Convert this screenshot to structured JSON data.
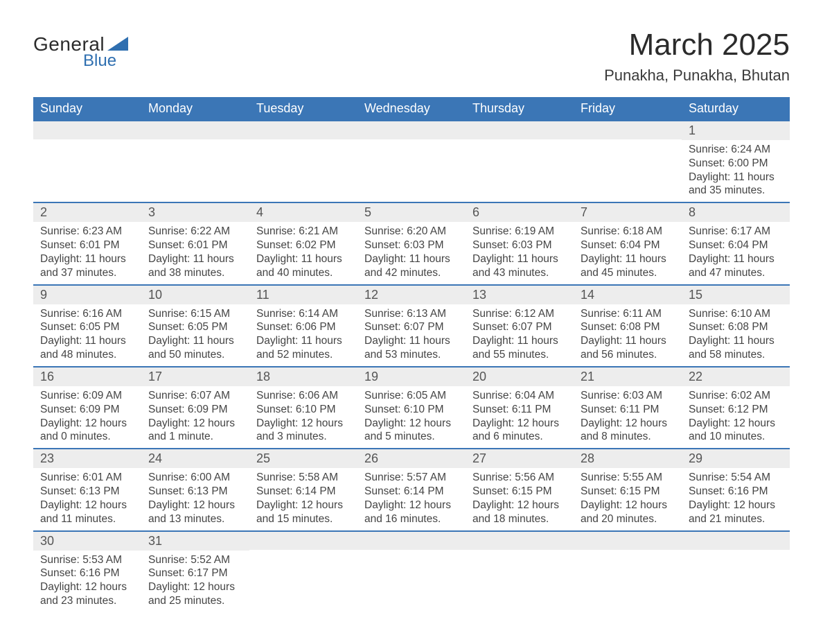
{
  "logo": {
    "text1": "General",
    "text2": "Blue",
    "tri_color": "#2f6fb0"
  },
  "title": "March 2025",
  "location": "Punakha, Punakha, Bhutan",
  "colors": {
    "header_bg": "#3b76b6",
    "header_fg": "#ffffff",
    "daynum_bg": "#ededed",
    "rule": "#3b76b6",
    "text": "#3a3a3a"
  },
  "weekdays": [
    "Sunday",
    "Monday",
    "Tuesday",
    "Wednesday",
    "Thursday",
    "Friday",
    "Saturday"
  ],
  "leading_blanks": 6,
  "days": [
    {
      "n": 1,
      "sr": "6:24 AM",
      "ss": "6:00 PM",
      "dl": "11 hours and 35 minutes."
    },
    {
      "n": 2,
      "sr": "6:23 AM",
      "ss": "6:01 PM",
      "dl": "11 hours and 37 minutes."
    },
    {
      "n": 3,
      "sr": "6:22 AM",
      "ss": "6:01 PM",
      "dl": "11 hours and 38 minutes."
    },
    {
      "n": 4,
      "sr": "6:21 AM",
      "ss": "6:02 PM",
      "dl": "11 hours and 40 minutes."
    },
    {
      "n": 5,
      "sr": "6:20 AM",
      "ss": "6:03 PM",
      "dl": "11 hours and 42 minutes."
    },
    {
      "n": 6,
      "sr": "6:19 AM",
      "ss": "6:03 PM",
      "dl": "11 hours and 43 minutes."
    },
    {
      "n": 7,
      "sr": "6:18 AM",
      "ss": "6:04 PM",
      "dl": "11 hours and 45 minutes."
    },
    {
      "n": 8,
      "sr": "6:17 AM",
      "ss": "6:04 PM",
      "dl": "11 hours and 47 minutes."
    },
    {
      "n": 9,
      "sr": "6:16 AM",
      "ss": "6:05 PM",
      "dl": "11 hours and 48 minutes."
    },
    {
      "n": 10,
      "sr": "6:15 AM",
      "ss": "6:05 PM",
      "dl": "11 hours and 50 minutes."
    },
    {
      "n": 11,
      "sr": "6:14 AM",
      "ss": "6:06 PM",
      "dl": "11 hours and 52 minutes."
    },
    {
      "n": 12,
      "sr": "6:13 AM",
      "ss": "6:07 PM",
      "dl": "11 hours and 53 minutes."
    },
    {
      "n": 13,
      "sr": "6:12 AM",
      "ss": "6:07 PM",
      "dl": "11 hours and 55 minutes."
    },
    {
      "n": 14,
      "sr": "6:11 AM",
      "ss": "6:08 PM",
      "dl": "11 hours and 56 minutes."
    },
    {
      "n": 15,
      "sr": "6:10 AM",
      "ss": "6:08 PM",
      "dl": "11 hours and 58 minutes."
    },
    {
      "n": 16,
      "sr": "6:09 AM",
      "ss": "6:09 PM",
      "dl": "12 hours and 0 minutes."
    },
    {
      "n": 17,
      "sr": "6:07 AM",
      "ss": "6:09 PM",
      "dl": "12 hours and 1 minute."
    },
    {
      "n": 18,
      "sr": "6:06 AM",
      "ss": "6:10 PM",
      "dl": "12 hours and 3 minutes."
    },
    {
      "n": 19,
      "sr": "6:05 AM",
      "ss": "6:10 PM",
      "dl": "12 hours and 5 minutes."
    },
    {
      "n": 20,
      "sr": "6:04 AM",
      "ss": "6:11 PM",
      "dl": "12 hours and 6 minutes."
    },
    {
      "n": 21,
      "sr": "6:03 AM",
      "ss": "6:11 PM",
      "dl": "12 hours and 8 minutes."
    },
    {
      "n": 22,
      "sr": "6:02 AM",
      "ss": "6:12 PM",
      "dl": "12 hours and 10 minutes."
    },
    {
      "n": 23,
      "sr": "6:01 AM",
      "ss": "6:13 PM",
      "dl": "12 hours and 11 minutes."
    },
    {
      "n": 24,
      "sr": "6:00 AM",
      "ss": "6:13 PM",
      "dl": "12 hours and 13 minutes."
    },
    {
      "n": 25,
      "sr": "5:58 AM",
      "ss": "6:14 PM",
      "dl": "12 hours and 15 minutes."
    },
    {
      "n": 26,
      "sr": "5:57 AM",
      "ss": "6:14 PM",
      "dl": "12 hours and 16 minutes."
    },
    {
      "n": 27,
      "sr": "5:56 AM",
      "ss": "6:15 PM",
      "dl": "12 hours and 18 minutes."
    },
    {
      "n": 28,
      "sr": "5:55 AM",
      "ss": "6:15 PM",
      "dl": "12 hours and 20 minutes."
    },
    {
      "n": 29,
      "sr": "5:54 AM",
      "ss": "6:16 PM",
      "dl": "12 hours and 21 minutes."
    },
    {
      "n": 30,
      "sr": "5:53 AM",
      "ss": "6:16 PM",
      "dl": "12 hours and 23 minutes."
    },
    {
      "n": 31,
      "sr": "5:52 AM",
      "ss": "6:17 PM",
      "dl": "12 hours and 25 minutes."
    }
  ],
  "labels": {
    "sunrise": "Sunrise:",
    "sunset": "Sunset:",
    "daylight": "Daylight:"
  }
}
